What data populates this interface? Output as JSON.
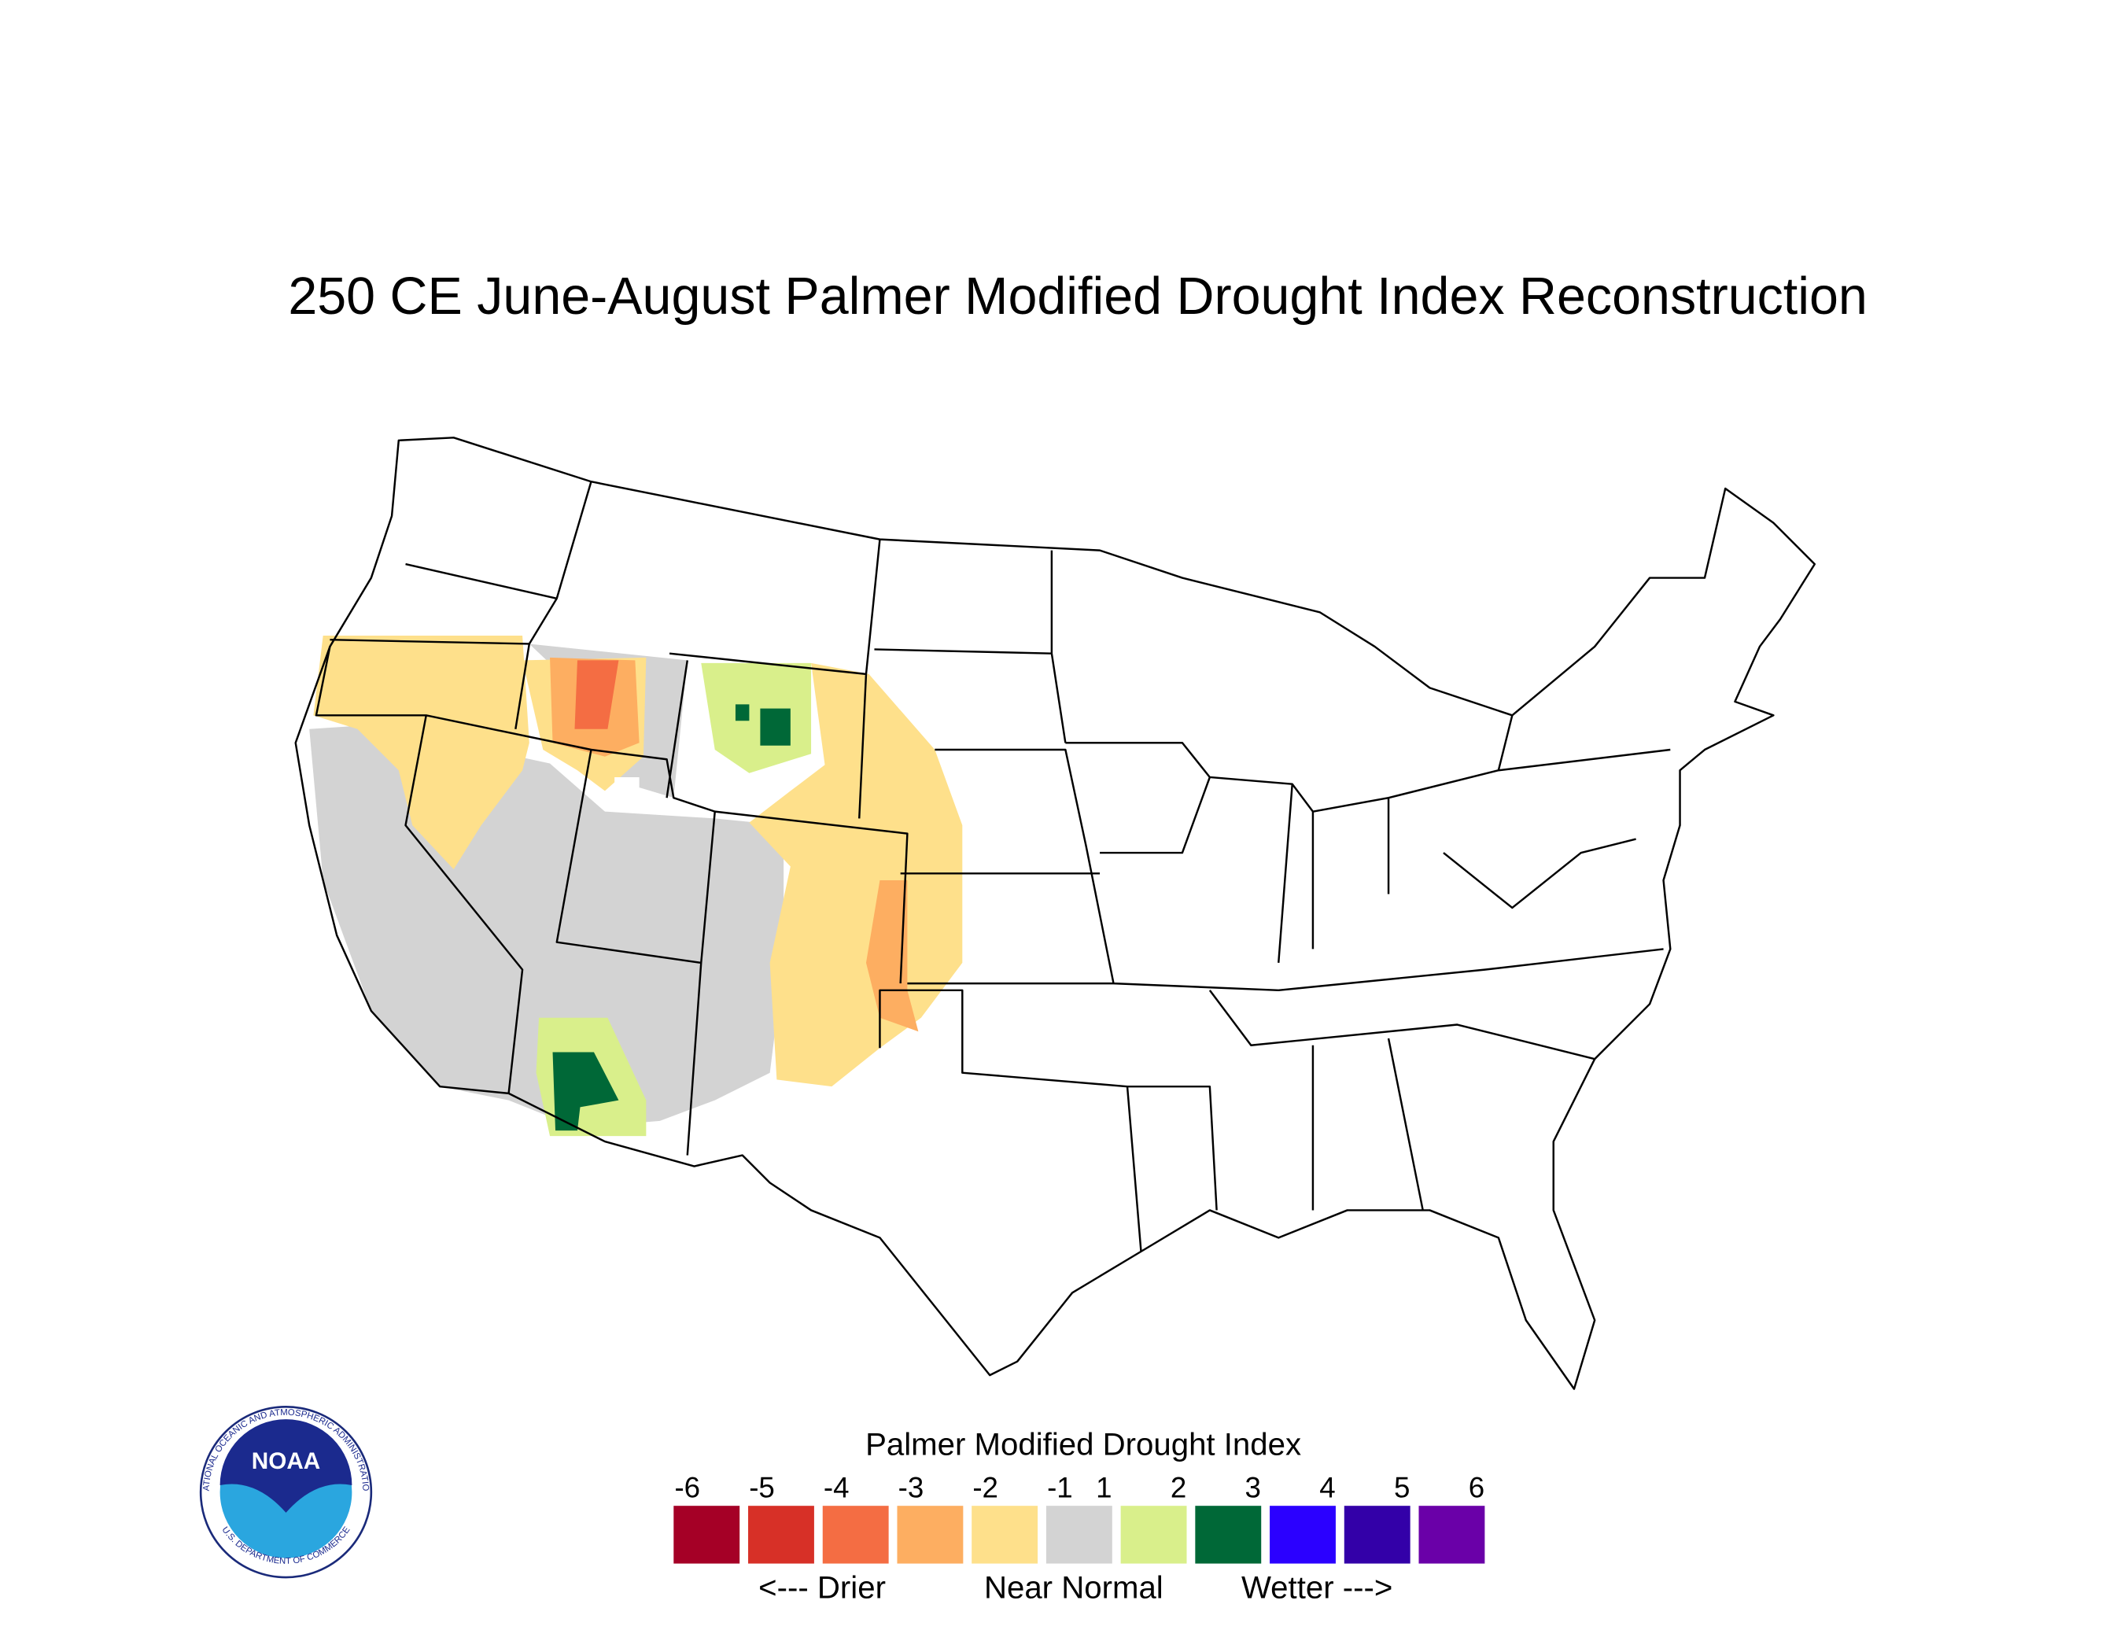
{
  "title": "250 CE  June-August  Palmer Modified Drought Index Reconstruction",
  "legend": {
    "title": "Palmer Modified Drought Index",
    "ticks": [
      -6,
      -5,
      -4,
      -3,
      -2,
      -1,
      1,
      2,
      3,
      4,
      5,
      6
    ],
    "colors": [
      "#a50026",
      "#d73027",
      "#f46d43",
      "#fdae61",
      "#fee08b",
      "#d3d3d3",
      "#d9ef8b",
      "#006837",
      "#2b00ff",
      "#3300a8",
      "#6a00a8"
    ],
    "drier": "<--- Drier",
    "normal": "Near Normal",
    "wetter": "Wetter --->"
  },
  "logo": {
    "label": "NOAA",
    "ring_top": "NATIONAL OCEANIC AND ATMOSPHERIC ADMINISTRATION",
    "ring_bottom": "U.S. DEPARTMENT OF COMMERCE"
  }
}
